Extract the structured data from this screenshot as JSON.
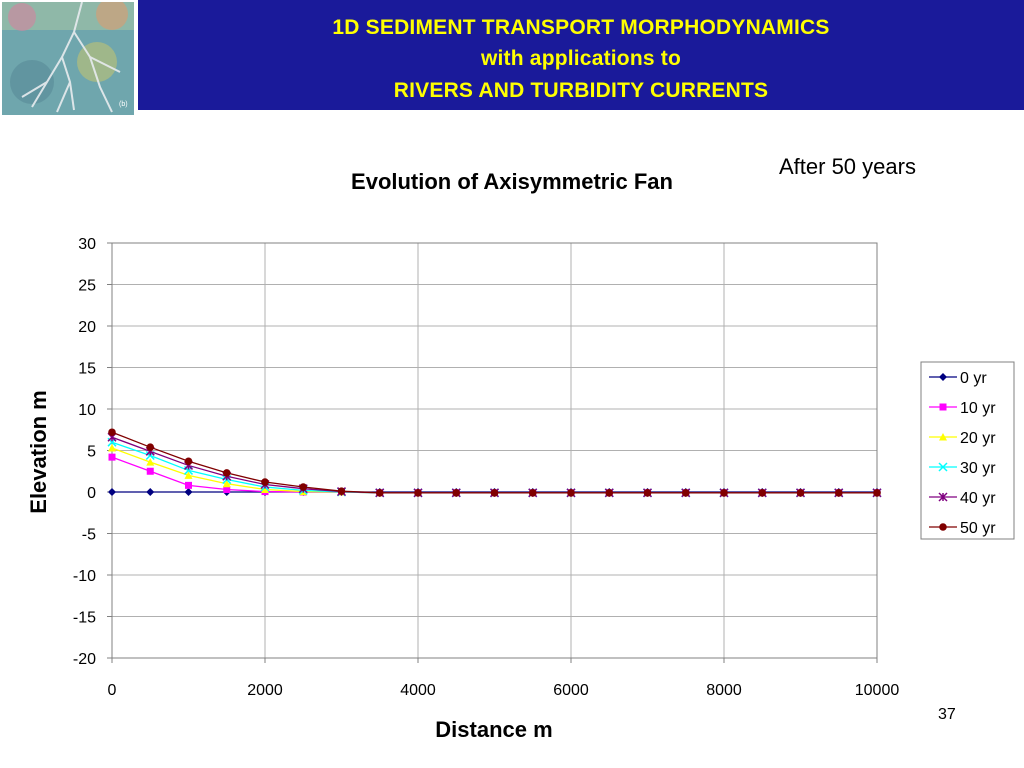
{
  "header": {
    "title_line1": "1D SEDIMENT TRANSPORT MORPHODYNAMICS",
    "title_line2": "with applications to",
    "title_line3": "RIVERS AND TURBIDITY CURRENTS",
    "banner_color": "#1a1a9a",
    "title_color": "#ffff00"
  },
  "note": "After 50 years",
  "slide_number": "37",
  "chart_data": {
    "type": "line",
    "title": "Evolution of Axisymmetric Fan",
    "xlabel": "Distance m",
    "ylabel": "Elevation m",
    "xlim": [
      0,
      10000
    ],
    "ylim": [
      -20,
      30
    ],
    "xticks": [
      0,
      2000,
      4000,
      6000,
      8000,
      10000
    ],
    "yticks": [
      30,
      25,
      20,
      15,
      10,
      5,
      0,
      -5,
      -10,
      -15,
      -20
    ],
    "grid": true,
    "legend_position": "right",
    "x": [
      0,
      500,
      1000,
      1500,
      2000,
      2500,
      3000,
      3500,
      4000,
      4500,
      5000,
      5500,
      6000,
      6500,
      7000,
      7500,
      8000,
      8500,
      9000,
      9500,
      10000
    ],
    "series": [
      {
        "name": "0 yr",
        "color": "#000080",
        "marker": "diamond",
        "values": [
          0,
          0,
          0,
          0,
          0,
          0,
          0,
          0,
          0,
          0,
          0,
          0,
          0,
          0,
          0,
          0,
          0,
          0,
          0,
          0,
          0
        ]
      },
      {
        "name": "10 yr",
        "color": "#ff00ff",
        "marker": "square",
        "values": [
          4.2,
          2.5,
          0.8,
          0.3,
          0.05,
          0,
          0,
          -0.1,
          -0.1,
          -0.1,
          -0.1,
          -0.1,
          -0.1,
          -0.1,
          -0.1,
          -0.1,
          -0.1,
          -0.1,
          -0.1,
          -0.1,
          -0.1
        ]
      },
      {
        "name": "20 yr",
        "color": "#ffff00",
        "marker": "triangle",
        "values": [
          5.3,
          3.6,
          2.0,
          1.0,
          0.3,
          0.05,
          0,
          -0.1,
          -0.1,
          -0.1,
          -0.1,
          -0.1,
          -0.1,
          -0.1,
          -0.1,
          -0.1,
          -0.1,
          -0.1,
          -0.1,
          -0.1,
          -0.1
        ]
      },
      {
        "name": "30 yr",
        "color": "#00ffff",
        "marker": "x",
        "values": [
          6.0,
          4.4,
          2.6,
          1.5,
          0.6,
          0.2,
          0,
          -0.1,
          -0.1,
          -0.1,
          -0.1,
          -0.1,
          -0.1,
          -0.1,
          -0.1,
          -0.1,
          -0.1,
          -0.1,
          -0.1,
          -0.1,
          -0.1
        ]
      },
      {
        "name": "40 yr",
        "color": "#800080",
        "marker": "star",
        "values": [
          6.6,
          4.9,
          3.2,
          1.9,
          0.9,
          0.4,
          0.05,
          -0.1,
          -0.1,
          -0.1,
          -0.1,
          -0.1,
          -0.1,
          -0.1,
          -0.1,
          -0.1,
          -0.1,
          -0.1,
          -0.1,
          -0.1,
          -0.1
        ]
      },
      {
        "name": "50 yr",
        "color": "#800000",
        "marker": "circle",
        "values": [
          7.2,
          5.4,
          3.7,
          2.3,
          1.2,
          0.6,
          0.1,
          -0.1,
          -0.1,
          -0.1,
          -0.1,
          -0.1,
          -0.1,
          -0.1,
          -0.1,
          -0.1,
          -0.1,
          -0.1,
          -0.1,
          -0.1,
          -0.1
        ]
      }
    ]
  }
}
